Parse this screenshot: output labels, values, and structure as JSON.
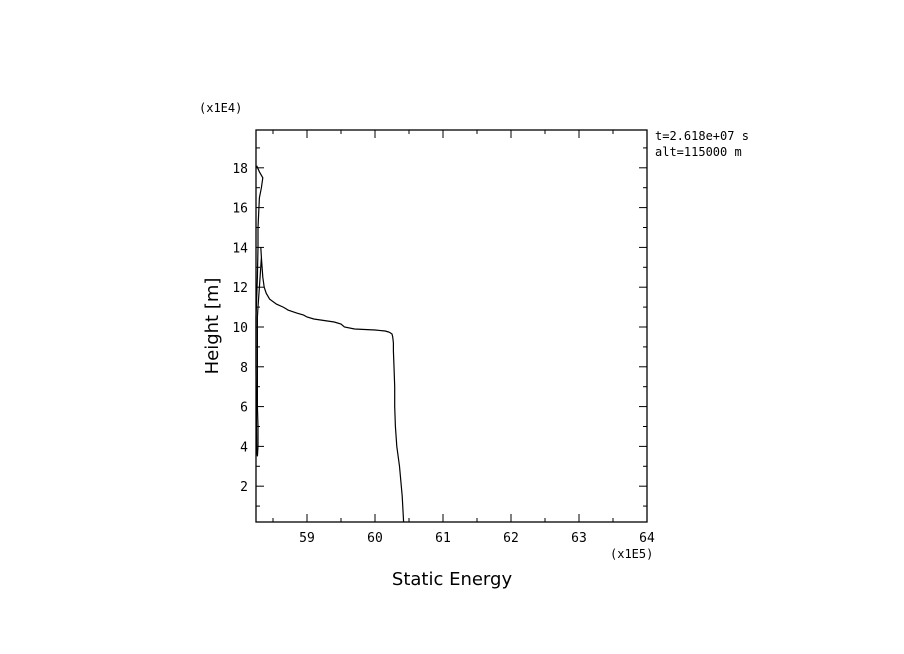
{
  "chart_data": {
    "type": "line",
    "title": "",
    "xlabel": "Static Energy",
    "ylabel": "Height [m]",
    "x_multiplier_label": "(x1E5)",
    "y_multiplier_label": "(x1E4)",
    "xlim": [
      58.25,
      64
    ],
    "ylim": [
      0.2,
      19.9
    ],
    "x_ticks": [
      59,
      60,
      61,
      62,
      63,
      64
    ],
    "x_tick_labels": [
      "59",
      "60",
      "61",
      "62",
      "63",
      "64"
    ],
    "y_ticks": [
      2,
      4,
      6,
      8,
      10,
      12,
      14,
      16,
      18
    ],
    "y_tick_labels": [
      "2",
      "4",
      "6",
      "8",
      "10",
      "12",
      "14",
      "16",
      "18"
    ],
    "annotations": [
      "t=2.618e+07 s",
      "alt=115000 m"
    ],
    "grid": false,
    "series": [
      {
        "x": [
          60.42,
          60.4,
          60.36,
          60.32,
          60.3,
          60.29,
          60.29,
          60.28,
          60.27,
          60.27,
          60.26,
          60.25,
          60.22,
          60.2,
          60.15,
          60.0,
          59.7,
          59.55,
          59.5,
          59.4,
          59.1,
          59.0,
          58.95,
          58.85,
          58.72,
          58.7,
          58.65,
          58.55,
          58.45,
          58.4,
          58.37,
          58.35,
          58.34,
          58.33,
          58.32,
          58.33,
          58.3,
          58.28,
          58.27,
          58.27,
          58.27,
          58.27,
          58.28,
          58.28,
          58.27,
          58.26,
          58.25,
          58.25,
          58.27,
          58.28,
          58.28,
          58.3,
          58.33,
          58.35,
          58.3,
          58.26
        ],
        "y": [
          0.2,
          1.5,
          3.0,
          4.0,
          5.0,
          6.0,
          7.0,
          8.0,
          8.8,
          9.2,
          9.5,
          9.65,
          9.72,
          9.75,
          9.8,
          9.85,
          9.9,
          10.0,
          10.15,
          10.25,
          10.4,
          10.5,
          10.6,
          10.7,
          10.85,
          10.9,
          11.0,
          11.15,
          11.4,
          11.7,
          12.0,
          12.5,
          13.0,
          13.5,
          14.0,
          13.5,
          12.0,
          11.0,
          10.5,
          9.0,
          7.0,
          6.0,
          5.0,
          4.0,
          3.5,
          3.8,
          8.0,
          10.5,
          12.5,
          14.0,
          15.0,
          16.5,
          17.0,
          17.5,
          17.8,
          18.1
        ]
      }
    ]
  }
}
